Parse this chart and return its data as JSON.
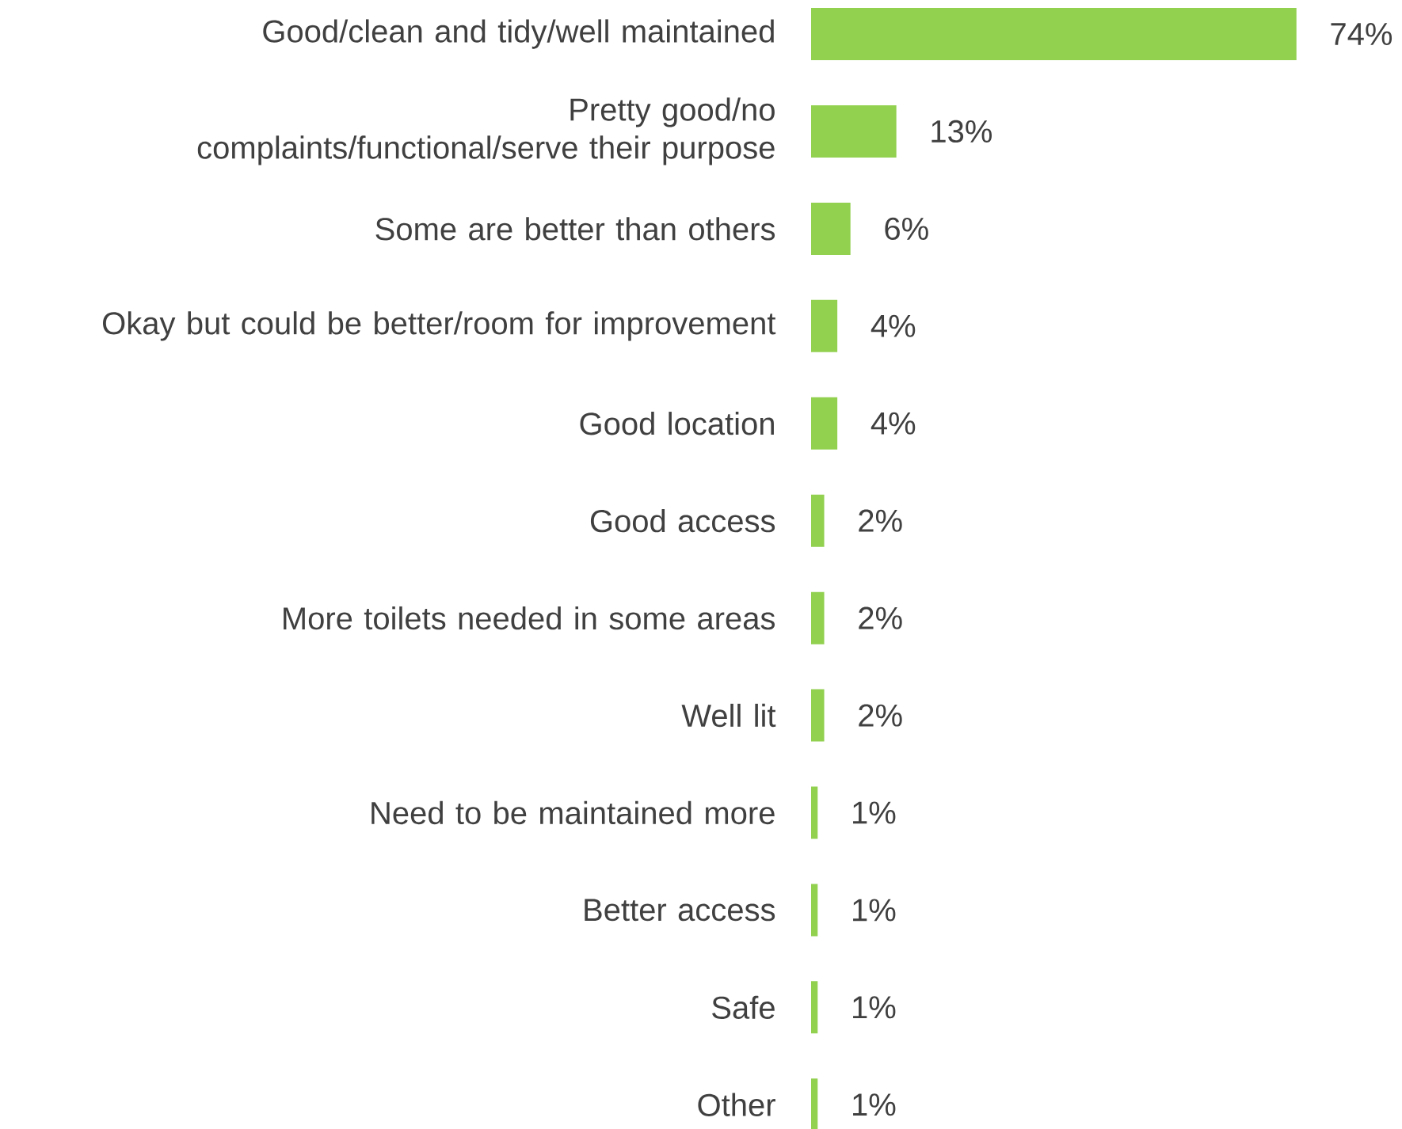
{
  "chart_data": {
    "type": "bar",
    "orientation": "horizontal",
    "categories": [
      "Good/clean and tidy/well maintained",
      "Pretty good/no complaints/functional/serve their purpose",
      "Some are better than others",
      "Okay but could be better/room for improvement",
      "Good location",
      "Good access",
      "More toilets needed in some areas",
      "Well lit",
      "Need to be maintained more",
      "Better access",
      "Safe",
      "Other"
    ],
    "values": [
      74,
      13,
      6,
      4,
      4,
      2,
      2,
      2,
      1,
      1,
      1,
      1
    ],
    "value_labels": [
      "74%",
      "13%",
      "6%",
      "4%",
      "4%",
      "2%",
      "2%",
      "2%",
      "1%",
      "1%",
      "1%",
      "1%"
    ],
    "color": "#92d050"
  }
}
